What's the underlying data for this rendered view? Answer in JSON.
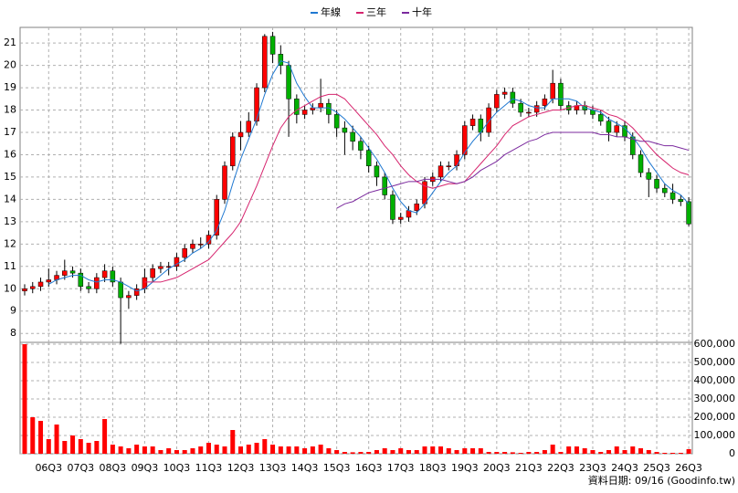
{
  "chart_data": [
    {
      "type": "candlestick",
      "categories": [
        null,
        null,
        null,
        "06Q3",
        null,
        null,
        null,
        "07Q3",
        null,
        null,
        null,
        "08Q3",
        null,
        null,
        null,
        "09Q3",
        null,
        null,
        null,
        "10Q3",
        null,
        null,
        null,
        "11Q3",
        null,
        null,
        null,
        "12Q3",
        null,
        null,
        null,
        "13Q3",
        null,
        null,
        null,
        "14Q3",
        null,
        null,
        null,
        "15Q3",
        null,
        null,
        null,
        "16Q3",
        null,
        null,
        null,
        "17Q3",
        null,
        null,
        null,
        "18Q3",
        null,
        null,
        null,
        "19Q3",
        null,
        null,
        null,
        "20Q3",
        null,
        null,
        null,
        "21Q3",
        null,
        null,
        null,
        "22Q3",
        null,
        null,
        null,
        "23Q3",
        null,
        null,
        null,
        "24Q3",
        null,
        null,
        null,
        "25Q3",
        null,
        null,
        null,
        "26Q3"
      ],
      "open": [
        9.9,
        10.0,
        10.1,
        10.3,
        10.4,
        10.6,
        10.8,
        10.7,
        10.1,
        10.0,
        10.5,
        10.8,
        10.3,
        9.6,
        9.7,
        10.0,
        10.5,
        10.9,
        11.0,
        11.0,
        11.4,
        11.8,
        12.0,
        12.0,
        12.4,
        14.0,
        15.5,
        16.8,
        17.0,
        17.5,
        19.0,
        21.3,
        20.5,
        20.0,
        18.5,
        17.8,
        18.0,
        18.1,
        18.3,
        17.8,
        17.2,
        17.0,
        16.6,
        16.2,
        15.5,
        15.0,
        14.2,
        13.1,
        13.2,
        13.5,
        13.8,
        14.8,
        15.0,
        15.5,
        15.5,
        16.0,
        17.3,
        17.6,
        17.0,
        18.1,
        18.7,
        18.8,
        18.3,
        17.9,
        17.9,
        18.2,
        18.5,
        19.2,
        18.2,
        18.0,
        18.2,
        18.0,
        17.8,
        17.5,
        17.0,
        17.3,
        16.8,
        16.0,
        15.2,
        14.9,
        14.5,
        14.3,
        14.0,
        13.9
      ],
      "high": [
        10.2,
        10.3,
        10.5,
        10.9,
        10.8,
        11.3,
        11.0,
        10.9,
        10.3,
        10.7,
        11.1,
        11.0,
        10.5,
        9.9,
        10.2,
        10.9,
        11.1,
        11.2,
        11.2,
        11.6,
        12.0,
        12.2,
        12.3,
        12.6,
        14.2,
        15.7,
        17.0,
        17.5,
        17.9,
        19.2,
        21.4,
        21.5,
        20.9,
        20.2,
        18.7,
        18.2,
        18.3,
        19.4,
        18.5,
        18.0,
        17.5,
        17.3,
        16.8,
        16.4,
        15.7,
        15.2,
        14.4,
        13.4,
        13.7,
        14.0,
        15.0,
        15.2,
        15.7,
        15.7,
        16.2,
        17.5,
        17.8,
        17.8,
        18.3,
        18.9,
        19.0,
        19.0,
        18.5,
        18.1,
        18.4,
        18.7,
        19.8,
        19.4,
        18.4,
        18.4,
        18.4,
        18.2,
        18.0,
        17.7,
        17.5,
        17.5,
        17.0,
        16.2,
        15.4,
        15.1,
        14.7,
        14.7,
        14.2,
        14.1
      ],
      "low": [
        9.7,
        9.8,
        9.9,
        10.1,
        10.2,
        10.4,
        10.5,
        9.9,
        9.8,
        9.8,
        10.3,
        10.1,
        7.5,
        9.1,
        9.5,
        9.8,
        10.3,
        10.7,
        10.6,
        10.8,
        11.2,
        11.6,
        11.8,
        11.8,
        12.2,
        13.8,
        15.3,
        16.2,
        16.8,
        17.3,
        18.8,
        20.1,
        19.6,
        16.8,
        17.4,
        17.6,
        17.8,
        17.9,
        17.4,
        16.8,
        16.0,
        16.2,
        15.8,
        15.2,
        14.6,
        14.0,
        12.9,
        12.9,
        13.0,
        13.3,
        13.6,
        14.6,
        14.8,
        15.3,
        15.3,
        15.8,
        17.1,
        16.6,
        16.8,
        17.9,
        18.5,
        18.1,
        17.7,
        17.7,
        17.7,
        18.0,
        18.3,
        18.0,
        17.8,
        17.8,
        17.8,
        17.6,
        17.3,
        16.6,
        16.8,
        16.6,
        15.8,
        15.0,
        14.1,
        14.3,
        14.1,
        13.8,
        13.7,
        12.8
      ],
      "close": [
        10.0,
        10.1,
        10.3,
        10.4,
        10.6,
        10.8,
        10.7,
        10.1,
        10.0,
        10.5,
        10.8,
        10.3,
        9.6,
        9.7,
        10.0,
        10.5,
        10.9,
        11.0,
        11.0,
        11.4,
        11.8,
        12.0,
        12.0,
        12.4,
        14.0,
        15.5,
        16.8,
        17.0,
        17.5,
        19.0,
        21.3,
        20.5,
        20.0,
        18.5,
        17.8,
        18.0,
        18.1,
        18.3,
        17.8,
        17.2,
        17.0,
        16.6,
        16.2,
        15.5,
        15.0,
        14.2,
        13.1,
        13.2,
        13.5,
        13.8,
        14.8,
        15.0,
        15.5,
        15.5,
        16.0,
        17.3,
        17.6,
        17.0,
        18.1,
        18.7,
        18.8,
        18.3,
        17.9,
        17.9,
        18.2,
        18.5,
        19.2,
        18.2,
        18.0,
        18.2,
        18.0,
        17.8,
        17.5,
        17.0,
        17.3,
        16.8,
        16.0,
        15.2,
        14.9,
        14.5,
        14.3,
        14.0,
        13.9,
        12.9
      ],
      "up_color": "#ff0000",
      "down_color": "#00b000",
      "series": [
        {
          "name": "年線",
          "color": "#1f78d1",
          "values": [
            null,
            null,
            null,
            10.2,
            10.4,
            10.5,
            10.6,
            10.6,
            10.4,
            10.3,
            10.4,
            10.4,
            10.3,
            10.1,
            9.9,
            10.0,
            10.3,
            10.6,
            10.9,
            11.1,
            11.3,
            11.6,
            11.8,
            12.1,
            12.6,
            13.5,
            14.7,
            15.8,
            16.7,
            17.6,
            18.7,
            19.6,
            20.2,
            20.1,
            19.2,
            18.6,
            18.1,
            18.1,
            18.1,
            17.9,
            17.6,
            17.2,
            16.8,
            16.3,
            15.8,
            15.2,
            14.5,
            13.9,
            13.5,
            13.4,
            13.8,
            14.3,
            14.8,
            15.2,
            15.5,
            16.1,
            16.6,
            17.0,
            17.5,
            17.9,
            18.2,
            18.5,
            18.4,
            18.2,
            18.1,
            18.1,
            18.5,
            18.5,
            18.5,
            18.4,
            18.1,
            18.0,
            17.9,
            17.6,
            17.4,
            17.2,
            16.8,
            16.3,
            15.7,
            15.2,
            14.7,
            14.4,
            14.2,
            13.8
          ]
        },
        {
          "name": "三年",
          "color": "#d6246e",
          "values": [
            null,
            null,
            null,
            null,
            null,
            null,
            null,
            null,
            null,
            null,
            null,
            null,
            null,
            null,
            null,
            10.3,
            10.3,
            10.3,
            10.4,
            10.5,
            10.7,
            10.9,
            11.1,
            11.3,
            11.7,
            12.1,
            12.5,
            13.0,
            13.8,
            14.6,
            15.5,
            16.4,
            17.2,
            17.7,
            18.0,
            18.2,
            18.4,
            18.6,
            18.7,
            18.7,
            18.5,
            18.1,
            17.7,
            17.3,
            16.9,
            16.4,
            16.0,
            15.5,
            15.1,
            14.8,
            14.6,
            14.5,
            14.6,
            14.7,
            14.7,
            14.8,
            15.2,
            15.6,
            16.0,
            16.4,
            16.9,
            17.3,
            17.5,
            17.7,
            17.8,
            17.9,
            18.0,
            18.0,
            18.1,
            18.2,
            18.2,
            18.1,
            18.0,
            17.8,
            17.7,
            17.5,
            17.2,
            16.8,
            16.4,
            16.0,
            15.7,
            15.4,
            15.2,
            15.1
          ]
        },
        {
          "name": "十年",
          "color": "#7b2a9e",
          "values": [
            null,
            null,
            null,
            null,
            null,
            null,
            null,
            null,
            null,
            null,
            null,
            null,
            null,
            null,
            null,
            null,
            null,
            null,
            null,
            null,
            null,
            null,
            null,
            null,
            null,
            null,
            null,
            null,
            null,
            null,
            null,
            null,
            null,
            null,
            null,
            null,
            null,
            null,
            null,
            13.6,
            13.8,
            13.9,
            14.1,
            14.3,
            14.4,
            14.5,
            14.6,
            14.7,
            14.8,
            14.8,
            14.9,
            14.9,
            14.9,
            14.8,
            14.7,
            14.8,
            15.0,
            15.3,
            15.5,
            15.7,
            16.0,
            16.2,
            16.4,
            16.6,
            16.7,
            16.9,
            17.0,
            17.0,
            17.0,
            17.0,
            17.0,
            17.0,
            16.9,
            16.9,
            16.8,
            16.8,
            16.7,
            16.6,
            16.6,
            16.5,
            16.4,
            16.4,
            16.3,
            16.2
          ]
        }
      ],
      "ylim": [
        7.6,
        21.7
      ],
      "yticks": [
        8,
        9,
        10,
        11,
        12,
        13,
        14,
        15,
        16,
        17,
        18,
        19,
        20,
        21
      ],
      "grid": true,
      "legend_position": "top"
    },
    {
      "type": "bar",
      "values": [
        600000,
        200000,
        180000,
        80000,
        160000,
        70000,
        100000,
        80000,
        60000,
        70000,
        190000,
        50000,
        40000,
        30000,
        50000,
        40000,
        40000,
        20000,
        30000,
        20000,
        20000,
        30000,
        40000,
        60000,
        50000,
        40000,
        130000,
        40000,
        50000,
        60000,
        80000,
        50000,
        40000,
        40000,
        40000,
        30000,
        40000,
        50000,
        30000,
        20000,
        10000,
        8000,
        10000,
        10000,
        20000,
        30000,
        20000,
        30000,
        20000,
        20000,
        40000,
        40000,
        40000,
        30000,
        20000,
        30000,
        30000,
        30000,
        10000,
        10000,
        10000,
        8000,
        5000,
        10000,
        10000,
        20000,
        50000,
        10000,
        40000,
        40000,
        30000,
        20000,
        10000,
        20000,
        40000,
        20000,
        40000,
        30000,
        20000,
        10000,
        5000,
        5000,
        5000,
        25000
      ],
      "color": "#ff0000",
      "ylim": [
        0,
        610000
      ],
      "yticks": [
        0,
        {
          "value": 100000,
          "label": "100,000"
        },
        {
          "value": 200000,
          "label": "200,000"
        },
        {
          "value": 300000,
          "label": "300,000"
        },
        {
          "value": 400000,
          "label": "400,000"
        },
        {
          "value": 500000,
          "label": "500,000"
        },
        {
          "value": 600000,
          "label": "600,000"
        }
      ],
      "grid": true
    }
  ],
  "footer": "資料日期: 09/16 (Goodinfo.tw)"
}
